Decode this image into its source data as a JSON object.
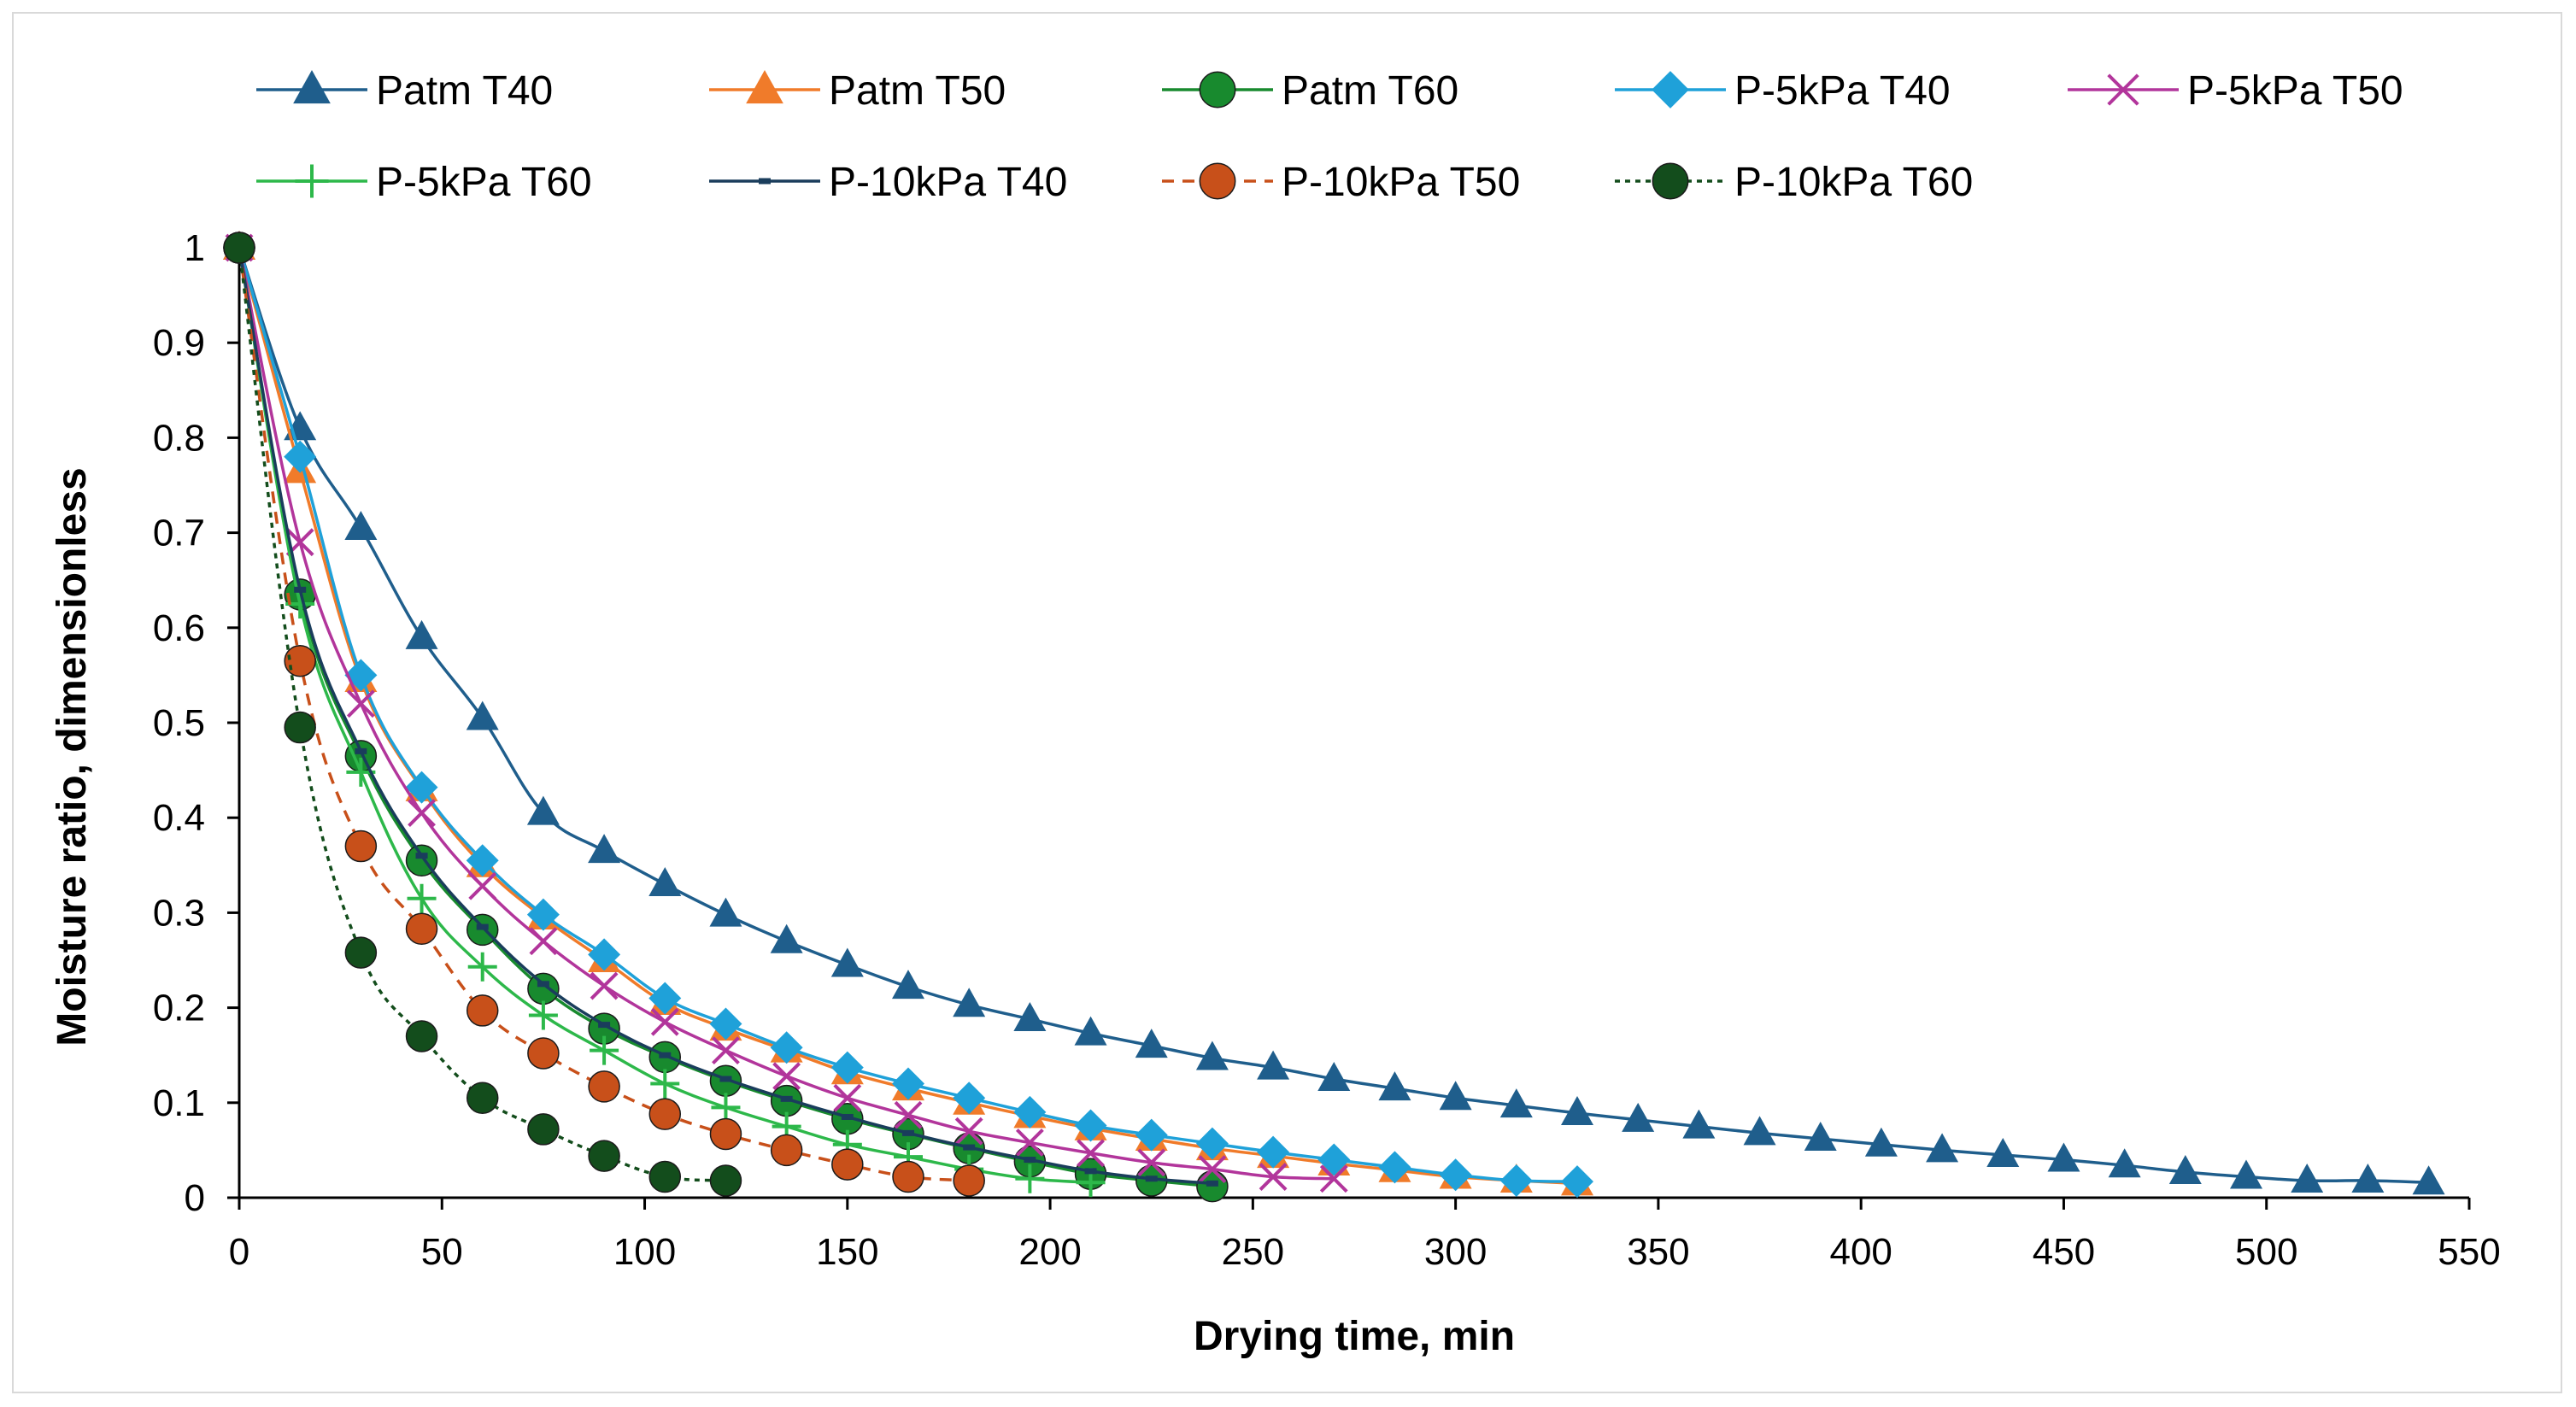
{
  "chart_data": {
    "type": "line",
    "title": "",
    "xlabel": "Drying time, min",
    "ylabel": "Moisture ratio, dimensionless",
    "xlim": [
      0,
      550
    ],
    "ylim": [
      0,
      1
    ],
    "xticks": [
      0,
      50,
      100,
      150,
      200,
      250,
      300,
      350,
      400,
      450,
      500,
      550
    ],
    "yticks": [
      0,
      0.1,
      0.2,
      0.3,
      0.4,
      0.5,
      0.6,
      0.7,
      0.8,
      0.9,
      1
    ],
    "xtick_labels": [
      "0",
      "50",
      "100",
      "150",
      "200",
      "250",
      "300",
      "350",
      "400",
      "450",
      "500",
      "550"
    ],
    "ytick_labels": [
      "0",
      "0.1",
      "0.2",
      "0.3",
      "0.4",
      "0.5",
      "0.6",
      "0.7",
      "0.8",
      "0.9",
      "1"
    ],
    "grid": false,
    "legend_position": "top",
    "series": [
      {
        "name": "Patm T40",
        "color": "#1f5e8c",
        "marker": "triangle",
        "dash": "solid",
        "x": [
          0,
          15,
          30,
          45,
          60,
          75,
          90,
          105,
          120,
          135,
          150,
          165,
          180,
          195,
          210,
          225,
          240,
          255,
          270,
          285,
          300,
          315,
          330,
          345,
          360,
          375,
          390,
          405,
          420,
          435,
          450,
          465,
          480,
          495,
          510,
          525,
          540
        ],
        "y": [
          1,
          0.81,
          0.705,
          0.59,
          0.505,
          0.405,
          0.365,
          0.33,
          0.298,
          0.27,
          0.245,
          0.222,
          0.203,
          0.188,
          0.173,
          0.16,
          0.147,
          0.137,
          0.125,
          0.115,
          0.105,
          0.097,
          0.089,
          0.082,
          0.075,
          0.068,
          0.062,
          0.056,
          0.05,
          0.045,
          0.04,
          0.034,
          0.027,
          0.022,
          0.018,
          0.018,
          0.016
        ]
      },
      {
        "name": "Patm T50",
        "color": "#f07b2a",
        "marker": "triangle",
        "dash": "solid",
        "x": [
          0,
          15,
          30,
          45,
          60,
          75,
          90,
          105,
          120,
          135,
          150,
          165,
          180,
          195,
          210,
          225,
          240,
          255,
          270,
          285,
          300,
          315,
          330
        ],
        "y": [
          1,
          0.765,
          0.545,
          0.43,
          0.35,
          0.295,
          0.25,
          0.205,
          0.178,
          0.155,
          0.132,
          0.115,
          0.1,
          0.086,
          0.073,
          0.062,
          0.052,
          0.044,
          0.036,
          0.029,
          0.022,
          0.018,
          0.015
        ]
      },
      {
        "name": "Patm T60",
        "color": "#188a2e",
        "marker": "circle",
        "dash": "solid",
        "x": [
          0,
          15,
          30,
          45,
          60,
          75,
          90,
          105,
          120,
          135,
          150,
          165,
          180,
          195,
          210,
          225,
          240
        ],
        "y": [
          1,
          0.635,
          0.465,
          0.355,
          0.282,
          0.22,
          0.178,
          0.148,
          0.123,
          0.102,
          0.083,
          0.067,
          0.052,
          0.038,
          0.025,
          0.018,
          0.012
        ]
      },
      {
        "name": "P-5kPa T40",
        "color": "#1fa1d9",
        "marker": "diamond",
        "dash": "solid",
        "x": [
          0,
          15,
          30,
          45,
          60,
          75,
          90,
          105,
          120,
          135,
          150,
          165,
          180,
          195,
          210,
          225,
          240,
          255,
          270,
          285,
          300,
          315,
          330
        ],
        "y": [
          1,
          0.78,
          0.55,
          0.432,
          0.355,
          0.298,
          0.256,
          0.21,
          0.183,
          0.158,
          0.137,
          0.12,
          0.105,
          0.09,
          0.076,
          0.066,
          0.057,
          0.048,
          0.04,
          0.032,
          0.024,
          0.018,
          0.017
        ]
      },
      {
        "name": "P-5kPa T50",
        "color": "#b2359b",
        "marker": "x",
        "dash": "solid",
        "x": [
          0,
          15,
          30,
          45,
          60,
          75,
          90,
          105,
          120,
          135,
          150,
          165,
          180,
          195,
          210,
          225,
          240,
          255,
          270
        ],
        "y": [
          1,
          0.69,
          0.52,
          0.405,
          0.328,
          0.27,
          0.223,
          0.185,
          0.155,
          0.128,
          0.105,
          0.087,
          0.07,
          0.058,
          0.047,
          0.037,
          0.03,
          0.022,
          0.02
        ]
      },
      {
        "name": "P-5kPa T60",
        "color": "#2db84a",
        "marker": "plus",
        "dash": "solid",
        "x": [
          0,
          15,
          30,
          45,
          60,
          75,
          90,
          105,
          120,
          135,
          150,
          165,
          180,
          195,
          210
        ],
        "y": [
          1,
          0.625,
          0.448,
          0.315,
          0.243,
          0.192,
          0.155,
          0.12,
          0.095,
          0.075,
          0.056,
          0.043,
          0.03,
          0.02,
          0.016
        ]
      },
      {
        "name": "P-10kPa T40",
        "color": "#1a3d5c",
        "marker": "dash",
        "dash": "solid",
        "x": [
          0,
          15,
          30,
          45,
          60,
          75,
          90,
          105,
          120,
          135,
          150,
          165,
          180,
          195,
          210,
          225,
          240
        ],
        "y": [
          1,
          0.64,
          0.47,
          0.36,
          0.285,
          0.225,
          0.182,
          0.15,
          0.125,
          0.104,
          0.085,
          0.068,
          0.053,
          0.04,
          0.028,
          0.02,
          0.015
        ]
      },
      {
        "name": "P-10kPa T50",
        "color": "#c8501a",
        "marker": "circle",
        "dash": "dashed",
        "x": [
          0,
          15,
          30,
          45,
          60,
          75,
          90,
          105,
          120,
          135,
          150,
          165,
          180
        ],
        "y": [
          1,
          0.565,
          0.37,
          0.283,
          0.197,
          0.152,
          0.117,
          0.088,
          0.067,
          0.05,
          0.035,
          0.022,
          0.018
        ]
      },
      {
        "name": "P-10kPa T60",
        "color": "#134d1c",
        "marker": "circle",
        "dash": "dotted",
        "x": [
          0,
          15,
          30,
          45,
          60,
          75,
          90,
          105,
          120
        ],
        "y": [
          1,
          0.495,
          0.258,
          0.17,
          0.105,
          0.072,
          0.044,
          0.022,
          0.018
        ]
      }
    ]
  }
}
